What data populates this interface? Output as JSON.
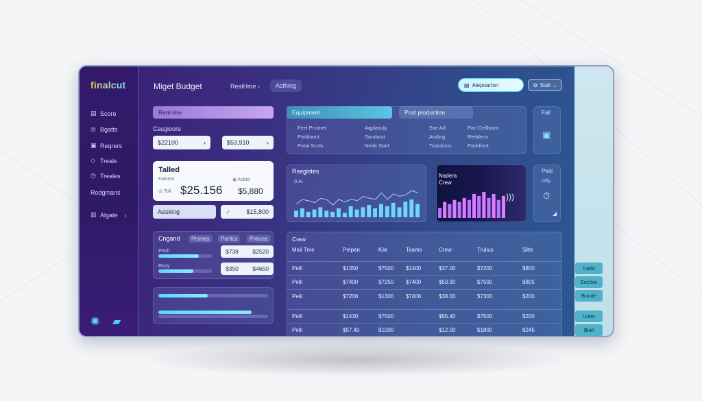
{
  "app": {
    "logo": "finalcut"
  },
  "sidebar": {
    "items": [
      {
        "label": "Score",
        "icon": "grid-icon"
      },
      {
        "label": "Bgatts",
        "icon": "circle-icon"
      },
      {
        "label": "Reqrers",
        "icon": "folder-icon"
      },
      {
        "label": "Treals",
        "icon": "tag-icon"
      },
      {
        "label": "Treales",
        "icon": "clock-icon"
      },
      {
        "label": "Rodgmans",
        "icon": ""
      },
      {
        "label": "Algate",
        "icon": "stack-icon"
      }
    ]
  },
  "header": {
    "title": "Miget Budget",
    "breadcrumb": "RealHme",
    "active_crumb": "Acthing",
    "search_label": "Alepoarton",
    "start_label": "Stall"
  },
  "realtime": {
    "tab": "Real-lme",
    "category_label": "Casgioore",
    "value_a": "$22100",
    "value_b": "$53,910"
  },
  "totals": {
    "title": "Talled",
    "sub_left": "Falcent",
    "sub_right": "Asbid",
    "toll_label": "Toll",
    "big_value": "$25.156",
    "side_value": "$5,880",
    "action_label": "Aesking",
    "action_value": "$15,800"
  },
  "ongoing": {
    "title": "Cngand",
    "tabs": [
      "Prsines",
      "Pertics",
      "Preices"
    ],
    "rows": [
      {
        "label": "Pecll",
        "v1": "$738",
        "v2": "$2520",
        "progress": 0.75
      },
      {
        "label": "Rssy",
        "v1": "$350",
        "v2": "$4650",
        "progress": 0.65
      }
    ]
  },
  "progress_card": {
    "bar1": 0.45,
    "bar2": 0.85
  },
  "equipment": {
    "tab1": "Equipment",
    "tab2": "Post production",
    "cols": [
      [
        "Feel Prcimet",
        "Podibarct",
        "Potal Scols"
      ],
      [
        "Aqplasidy",
        "Soudarct",
        "Nede Start"
      ],
      [
        "Sse Ad",
        "Anding",
        "Tclactions"
      ],
      [
        "Parl Cellbrant",
        "Reddens",
        "Packtlont"
      ]
    ]
  },
  "fail_card": {
    "label": "Fall"
  },
  "registries": {
    "title": "Rsegistes",
    "sub": "0 Al",
    "chart_values": [
      6,
      8,
      5,
      7,
      9,
      6,
      5,
      8,
      4,
      10,
      7,
      9,
      11,
      8,
      12,
      10,
      13,
      9,
      14,
      16,
      12
    ]
  },
  "nadera": {
    "title": "Nadera",
    "sub": "Crew",
    "bar_values": [
      5,
      8,
      7,
      9,
      8,
      10,
      9,
      12,
      11,
      13,
      10,
      12,
      9,
      11
    ]
  },
  "peal_card": {
    "title": "Peal",
    "sub": "Olfy"
  },
  "crew": {
    "title": "Crew",
    "headers": [
      "Mail Tme",
      "Pelpen",
      "Kile",
      "Toams",
      "Crew",
      "Trulius",
      "Sllte"
    ],
    "rows": [
      [
        "Pelil",
        "$1350",
        "$7500",
        "$1400",
        "$37.00",
        "$7200",
        "$800"
      ],
      [
        "Pelil",
        "$7400",
        "$7250",
        "$7400",
        "$53.90",
        "$7500",
        "$805"
      ],
      [
        "Pelil",
        "$7200",
        "$1300",
        "$7400",
        "$38.00",
        "$7300",
        "$200"
      ],
      [
        "Pelil",
        "$1430",
        "$7500",
        "",
        "$55.40",
        "$7500",
        "$200"
      ],
      [
        "Pelil",
        "$57.40",
        "$1000",
        "",
        "$12.00",
        "$1800",
        "$245"
      ]
    ]
  },
  "right_buttons": [
    "Datid",
    "Eeclise",
    "Bunde",
    "Unter",
    "Blall"
  ]
}
